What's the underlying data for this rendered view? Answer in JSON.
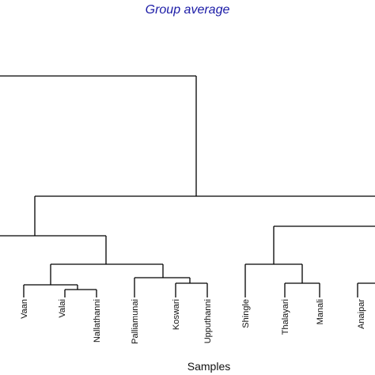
{
  "title": "Group average",
  "xlabel": "Samples",
  "leaves": [
    "Vaan",
    "Valai",
    "Nallathanni",
    "Palliamunai",
    "Koswari",
    "Upputhanni",
    "Shingle",
    "Thalayari",
    "Manali",
    "Anaipar"
  ],
  "colors": {
    "title": "#1a1aa6",
    "lines": "#000000",
    "text": "#111111"
  }
}
